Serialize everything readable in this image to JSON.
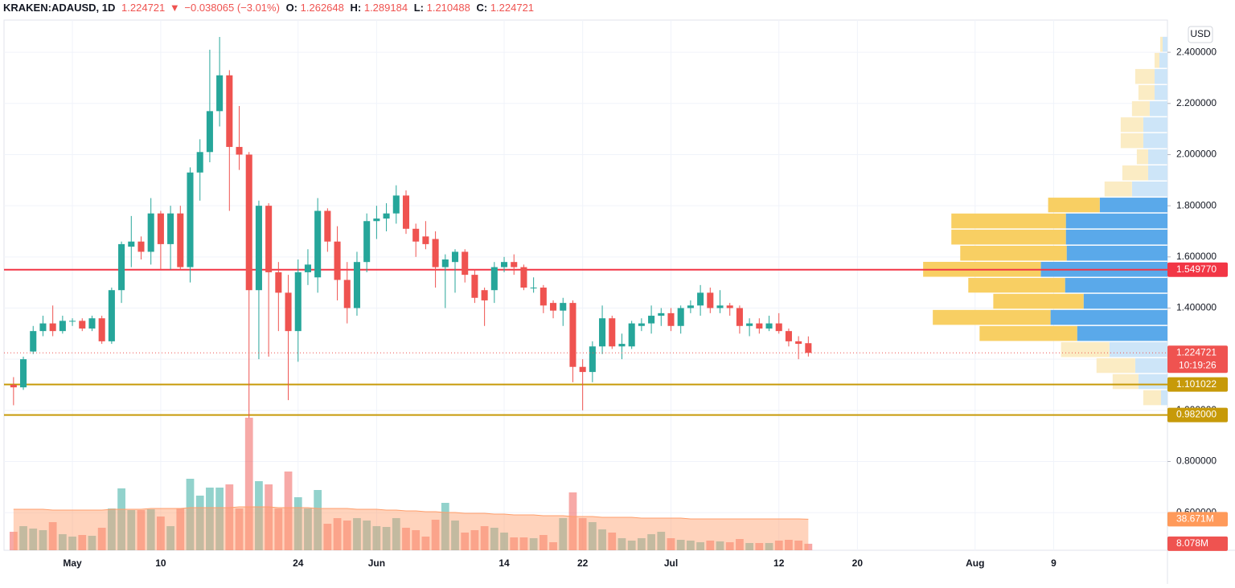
{
  "chart_data": {
    "type": "candlestick",
    "header": {
      "symbol": "KRAKEN:ADAUSD, 1D",
      "last": "1.224721",
      "arrow": "▼",
      "change": "−0.038065 (−3.01%)",
      "ohlc": [
        {
          "label": "O:",
          "value": "1.262648"
        },
        {
          "label": "H:",
          "value": "1.289184"
        },
        {
          "label": "L:",
          "value": "1.210488"
        },
        {
          "label": "C:",
          "value": "1.224721"
        }
      ]
    },
    "currency": "USD",
    "up_color": "#26a69a",
    "down_color": "#ef5350",
    "x": [
      -6,
      -5,
      -4,
      -3,
      -2,
      -1,
      0,
      1,
      2,
      3,
      4,
      5,
      6,
      7,
      8,
      9,
      10,
      11,
      12,
      13,
      14,
      15,
      16,
      17,
      18,
      19,
      20,
      21,
      22,
      23,
      24,
      25,
      26,
      27,
      28,
      29,
      30,
      31,
      32,
      33,
      34,
      35,
      36,
      37,
      38,
      39,
      40,
      41,
      42,
      43,
      44,
      45,
      46,
      47,
      48,
      49,
      50,
      51,
      52,
      53,
      54,
      55,
      56,
      57,
      58,
      59,
      60,
      61,
      62,
      63,
      64,
      65,
      66,
      67,
      68,
      69,
      70,
      71,
      72,
      73,
      74,
      75
    ],
    "open": [
      1.1,
      1.09,
      1.23,
      1.31,
      1.34,
      1.31,
      1.35,
      1.35,
      1.32,
      1.36,
      1.27,
      1.47,
      1.64,
      1.66,
      1.62,
      1.77,
      1.65,
      1.77,
      1.56,
      1.93,
      2.01,
      2.17,
      2.31,
      2.03,
      2.0,
      1.47,
      1.8,
      1.54,
      1.46,
      1.31,
      1.54,
      1.52,
      1.78,
      1.66,
      1.51,
      1.4,
      1.58,
      1.74,
      1.75,
      1.77,
      1.84,
      1.71,
      1.68,
      1.67,
      1.56,
      1.58,
      1.62,
      1.53,
      1.47,
      1.47,
      1.56,
      1.58,
      1.56,
      1.48,
      1.48,
      1.42,
      1.39,
      1.42,
      1.17,
      1.15,
      1.25,
      1.36,
      1.25,
      1.25,
      1.33,
      1.34,
      1.37,
      1.38,
      1.33,
      1.4,
      1.41,
      1.46,
      1.4,
      1.41,
      1.4,
      1.33,
      1.34,
      1.32,
      1.34,
      1.31,
      1.27,
      1.262648
    ],
    "high": [
      1.13,
      1.21,
      1.33,
      1.37,
      1.41,
      1.37,
      1.36,
      1.36,
      1.37,
      1.37,
      1.48,
      1.66,
      1.76,
      1.68,
      1.83,
      1.78,
      1.8,
      1.8,
      1.95,
      2.06,
      2.41,
      2.46,
      2.33,
      2.19,
      2.01,
      1.82,
      1.81,
      1.58,
      1.53,
      1.59,
      1.63,
      1.83,
      1.79,
      1.72,
      1.58,
      1.62,
      1.77,
      1.8,
      1.81,
      1.88,
      1.86,
      1.73,
      1.74,
      1.7,
      1.61,
      1.63,
      1.63,
      1.55,
      1.48,
      1.58,
      1.6,
      1.61,
      1.57,
      1.52,
      1.49,
      1.43,
      1.44,
      1.43,
      1.2,
      1.27,
      1.41,
      1.37,
      1.3,
      1.35,
      1.36,
      1.41,
      1.4,
      1.4,
      1.41,
      1.43,
      1.49,
      1.48,
      1.47,
      1.42,
      1.41,
      1.36,
      1.36,
      1.37,
      1.38,
      1.32,
      1.29,
      1.289184
    ],
    "low": [
      1.02,
      1.08,
      1.22,
      1.29,
      1.29,
      1.3,
      1.33,
      1.31,
      1.31,
      1.26,
      1.26,
      1.42,
      1.56,
      1.59,
      1.57,
      1.55,
      1.55,
      1.55,
      1.5,
      1.82,
      1.97,
      2.11,
      1.78,
      1.94,
      0.97,
      1.2,
      1.21,
      1.31,
      1.04,
      1.19,
      1.49,
      1.46,
      1.62,
      1.43,
      1.34,
      1.37,
      1.54,
      1.67,
      1.7,
      1.73,
      1.69,
      1.6,
      1.63,
      1.48,
      1.4,
      1.46,
      1.5,
      1.42,
      1.33,
      1.42,
      1.54,
      1.53,
      1.47,
      1.46,
      1.38,
      1.36,
      1.33,
      1.11,
      1.0,
      1.11,
      1.22,
      1.24,
      1.2,
      1.24,
      1.31,
      1.3,
      1.33,
      1.31,
      1.3,
      1.38,
      1.37,
      1.38,
      1.38,
      1.37,
      1.3,
      1.29,
      1.3,
      1.31,
      1.3,
      1.25,
      1.2,
      1.210488
    ],
    "close": [
      1.09,
      1.2,
      1.31,
      1.34,
      1.31,
      1.35,
      1.35,
      1.32,
      1.36,
      1.27,
      1.47,
      1.65,
      1.66,
      1.62,
      1.77,
      1.65,
      1.77,
      1.56,
      1.93,
      2.01,
      2.17,
      2.31,
      2.03,
      2.0,
      1.47,
      1.8,
      1.54,
      1.46,
      1.31,
      1.54,
      1.57,
      1.78,
      1.66,
      1.51,
      1.4,
      1.58,
      1.74,
      1.75,
      1.77,
      1.84,
      1.71,
      1.66,
      1.65,
      1.56,
      1.59,
      1.62,
      1.53,
      1.44,
      1.43,
      1.56,
      1.58,
      1.56,
      1.48,
      1.48,
      1.41,
      1.39,
      1.42,
      1.17,
      1.15,
      1.25,
      1.36,
      1.25,
      1.26,
      1.34,
      1.34,
      1.37,
      1.38,
      1.33,
      1.4,
      1.41,
      1.46,
      1.4,
      1.41,
      1.4,
      1.33,
      1.34,
      1.32,
      1.34,
      1.31,
      1.27,
      1.26,
      1.224721
    ],
    "volume": [
      23,
      30,
      27,
      25,
      35,
      20,
      17,
      19,
      18,
      28,
      52,
      77,
      50,
      50,
      51,
      42,
      30,
      52,
      89,
      68,
      78,
      78,
      82,
      52,
      165,
      86,
      82,
      52,
      98,
      66,
      52,
      75,
      33,
      40,
      37,
      40,
      37,
      30,
      29,
      40,
      28,
      25,
      17,
      38,
      59,
      37,
      22,
      25,
      30,
      28,
      22,
      16,
      16,
      15,
      19,
      10,
      40,
      72,
      40,
      35,
      26,
      22,
      15,
      12,
      15,
      20,
      23,
      15,
      13,
      12,
      10,
      12,
      11,
      10,
      14,
      9,
      9,
      9,
      12,
      13,
      12,
      8.078
    ],
    "volume_ma": [
      51,
      51,
      51,
      51,
      50,
      50,
      50,
      50,
      50,
      50,
      51,
      51,
      51,
      51,
      52,
      52,
      52,
      52,
      53,
      53,
      53,
      53,
      53,
      54,
      54,
      54,
      54,
      53,
      53,
      53,
      53,
      52,
      52,
      52,
      52,
      51,
      51,
      51,
      50,
      50,
      49,
      49,
      48,
      48,
      47,
      47,
      46,
      46,
      46,
      45,
      45,
      44,
      44,
      44,
      43,
      43,
      43,
      42,
      42,
      42,
      41,
      41,
      41,
      41,
      40,
      40,
      40,
      40,
      40,
      39,
      39,
      39,
      39,
      39,
      39,
      39,
      39,
      39,
      39,
      39,
      39,
      38.671
    ],
    "volume_ma_color": "#ff9e6b",
    "volume_tags": [
      {
        "value": 38.671,
        "label": "38.671M",
        "color": "#ff9a5a"
      },
      {
        "value": 8.078,
        "label": "8.078M",
        "color": "#ef5350"
      }
    ],
    "xlim": [
      -6.97,
      111.6
    ],
    "xticks": [
      {
        "value": 0,
        "label": "May"
      },
      {
        "value": 9,
        "label": "10"
      },
      {
        "value": 23,
        "label": "24"
      },
      {
        "value": 31,
        "label": "Jun"
      },
      {
        "value": 44,
        "label": "14"
      },
      {
        "value": 52,
        "label": "22"
      },
      {
        "value": 61,
        "label": "Jul"
      },
      {
        "value": 72,
        "label": "12"
      },
      {
        "value": 80,
        "label": "20"
      },
      {
        "value": 92,
        "label": "Aug"
      },
      {
        "value": 100,
        "label": "9"
      }
    ],
    "ylim": [
      0.453,
      2.526
    ],
    "yticks": [
      {
        "value": 2.4,
        "label": "2.400000"
      },
      {
        "value": 2.2,
        "label": "2.200000"
      },
      {
        "value": 2.0,
        "label": "2.000000"
      },
      {
        "value": 1.8,
        "label": "1.800000"
      },
      {
        "value": 1.6,
        "label": "1.600000"
      },
      {
        "value": 1.4,
        "label": "1.400000"
      },
      {
        "value": 1.2,
        "label": "1.200000"
      },
      {
        "value": 1.0,
        "label": "1.000000"
      },
      {
        "value": 0.8,
        "label": "0.800000"
      },
      {
        "value": 0.6,
        "label": "0.600000"
      }
    ],
    "grid": true,
    "price_lines": [
      {
        "value": 1.54977,
        "label": "1.549770",
        "color": "#f23645"
      },
      {
        "value": 1.101022,
        "label": "1.101022",
        "color": "#c79a09"
      },
      {
        "value": 0.982,
        "label": "0.982000",
        "color": "#c79a09"
      }
    ],
    "last_price": {
      "value": 1.224721,
      "label": "1.224721",
      "countdown": "10:19:26",
      "color": "#ef5350"
    },
    "volume_profile": {
      "bins": [
        1.018,
        1.081,
        1.144,
        1.206,
        1.269,
        1.332,
        1.395,
        1.458,
        1.52,
        1.583,
        1.646,
        1.709,
        1.772,
        1.834,
        1.897,
        1.96,
        2.023,
        2.086,
        2.148,
        2.211,
        2.274,
        2.337,
        2.4,
        2.463
      ],
      "up": [
        8,
        36,
        40,
        72,
        112,
        145,
        104,
        127,
        157,
        125,
        126,
        126,
        84,
        44,
        24,
        24,
        30,
        30,
        22,
        16,
        16,
        10,
        6
      ],
      "down": [
        22,
        32,
        48,
        60,
        121,
        146,
        112,
        120,
        146,
        132,
        142,
        142,
        64,
        34,
        32,
        14,
        28,
        28,
        22,
        20,
        24,
        6,
        3
      ],
      "up_color": "#5aa9ea",
      "down_color": "#f8cf63",
      "up_color_light": "#cde5f8",
      "down_color_light": "#fbecc4"
    }
  }
}
